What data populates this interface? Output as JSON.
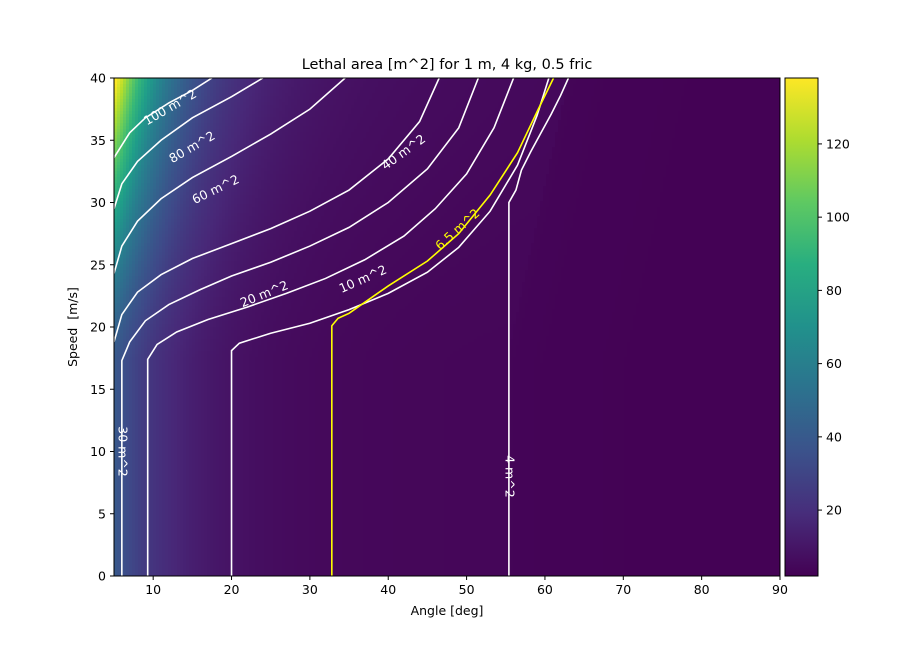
{
  "chart_data": {
    "type": "heatmap",
    "title": "Lethal area [m^2] for 1 m, 4 kg, 0.5 fric",
    "xlabel": "Angle [deg]",
    "ylabel": "Speed  [m/s]",
    "xlim": [
      5,
      90
    ],
    "ylim": [
      0,
      40
    ],
    "xticks": [
      10,
      20,
      30,
      40,
      50,
      60,
      70,
      80,
      90
    ],
    "yticks": [
      0,
      5,
      10,
      15,
      20,
      25,
      30,
      35,
      40
    ],
    "colorbar": {
      "colormap": "viridis",
      "range": [
        2,
        138
      ],
      "ticks": [
        20,
        40,
        60,
        80,
        100,
        120
      ]
    },
    "contours": [
      {
        "label": "100 m^2",
        "level": 100,
        "color": "#ffffff",
        "points": [
          [
            5,
            33.6
          ],
          [
            7,
            35.6
          ],
          [
            9,
            36.8
          ],
          [
            12,
            38.0
          ],
          [
            15,
            39.0
          ],
          [
            17.5,
            40
          ]
        ]
      },
      {
        "label": "80 m^2",
        "level": 80,
        "color": "#ffffff",
        "points": [
          [
            5,
            29.5
          ],
          [
            6,
            31.5
          ],
          [
            8,
            33.3
          ],
          [
            11,
            35.0
          ],
          [
            15,
            36.8
          ],
          [
            20,
            38.5
          ],
          [
            24,
            40
          ]
        ]
      },
      {
        "label": "60 m^2",
        "level": 60,
        "color": "#ffffff",
        "points": [
          [
            5,
            24.3
          ],
          [
            6,
            26.5
          ],
          [
            8,
            28.5
          ],
          [
            11,
            30.3
          ],
          [
            15,
            32.0
          ],
          [
            20,
            33.7
          ],
          [
            25,
            35.5
          ],
          [
            30,
            37.5
          ],
          [
            34.5,
            40
          ]
        ]
      },
      {
        "label": "40 m^2",
        "level": 40,
        "color": "#ffffff",
        "points": [
          [
            5,
            18.8
          ],
          [
            6,
            21.0
          ],
          [
            8,
            22.8
          ],
          [
            11,
            24.2
          ],
          [
            15,
            25.5
          ],
          [
            20,
            26.7
          ],
          [
            25,
            27.9
          ],
          [
            30,
            29.3
          ],
          [
            35,
            31.0
          ],
          [
            40,
            33.5
          ],
          [
            44,
            36.5
          ],
          [
            46.5,
            40
          ]
        ]
      },
      {
        "label": "30 m^2",
        "level": 30,
        "color": "#ffffff",
        "points": [
          [
            6,
            0
          ],
          [
            6,
            17.3
          ],
          [
            7,
            18.8
          ],
          [
            9,
            20.5
          ],
          [
            12,
            21.8
          ],
          [
            16,
            23.0
          ],
          [
            20,
            24.1
          ],
          [
            25,
            25.2
          ],
          [
            30,
            26.5
          ],
          [
            35,
            28.0
          ],
          [
            40,
            30.0
          ],
          [
            45,
            32.7
          ],
          [
            49,
            36.0
          ],
          [
            51.5,
            40
          ]
        ]
      },
      {
        "label": "20 m^2",
        "level": 20,
        "color": "#ffffff",
        "points": [
          [
            9.3,
            0
          ],
          [
            9.3,
            17.4
          ],
          [
            10.5,
            18.6
          ],
          [
            13,
            19.6
          ],
          [
            17,
            20.6
          ],
          [
            22,
            21.6
          ],
          [
            27,
            22.7
          ],
          [
            32,
            23.9
          ],
          [
            37,
            25.4
          ],
          [
            42,
            27.3
          ],
          [
            46,
            29.5
          ],
          [
            50,
            32.3
          ],
          [
            53.5,
            36.0
          ],
          [
            56,
            40
          ]
        ]
      },
      {
        "label": "10 m^2",
        "level": 10,
        "color": "#ffffff",
        "points": [
          [
            20,
            0
          ],
          [
            20,
            18.1
          ],
          [
            21,
            18.7
          ],
          [
            25,
            19.5
          ],
          [
            30,
            20.3
          ],
          [
            35,
            21.4
          ],
          [
            40,
            22.7
          ],
          [
            45,
            24.4
          ],
          [
            49,
            26.4
          ],
          [
            53,
            29.3
          ],
          [
            56.5,
            33.0
          ],
          [
            59,
            37.0
          ],
          [
            60.5,
            40
          ]
        ]
      },
      {
        "label": "6.5 m^2",
        "level": 6.5,
        "color": "#ffff00",
        "points": [
          [
            32.8,
            0
          ],
          [
            32.8,
            20.1
          ],
          [
            33.6,
            20.7
          ],
          [
            35,
            21.1
          ],
          [
            40,
            23.3
          ],
          [
            45,
            25.3
          ],
          [
            49,
            27.5
          ],
          [
            53,
            30.6
          ],
          [
            56.5,
            34.0
          ],
          [
            59,
            37.3
          ],
          [
            61.1,
            40
          ]
        ]
      },
      {
        "label": "4 m^2",
        "level": 4,
        "color": "#ffffff",
        "points": [
          [
            55.4,
            0
          ],
          [
            55.4,
            30.0
          ],
          [
            56.3,
            31.0
          ],
          [
            57,
            32.6
          ],
          [
            58.2,
            34.1
          ],
          [
            59.5,
            35.6
          ],
          [
            60.8,
            37.1
          ],
          [
            62,
            38.6
          ],
          [
            63,
            40
          ]
        ]
      }
    ]
  }
}
